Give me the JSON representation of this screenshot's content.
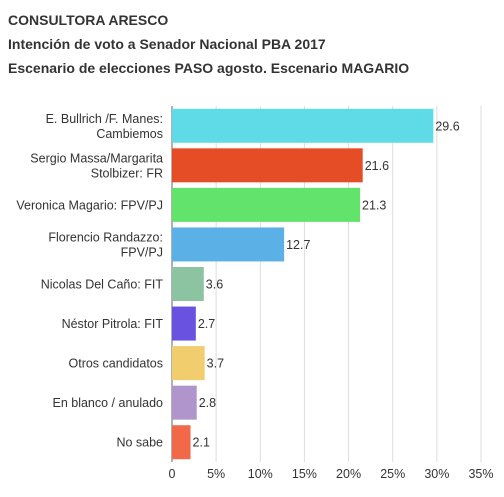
{
  "header": {
    "line1": "CONSULTORA ARESCO",
    "line2": "Intención de voto a Senador Nacional PBA 2017",
    "line3": "Escenario de elecciones PASO agosto. Escenario MAGARIO"
  },
  "chart_data": {
    "type": "bar",
    "orientation": "horizontal",
    "title": "Intención de voto a Senador Nacional PBA 2017",
    "subtitle": "Escenario de elecciones PASO agosto. Escenario MAGARIO",
    "xlabel": "",
    "ylabel": "",
    "xlim": [
      0,
      35
    ],
    "grid": true,
    "legend": "none",
    "categories": [
      [
        "E. Bullrich /F. Manes:",
        "Cambiemos"
      ],
      [
        "Sergio Massa/Margarita",
        "Stolbizer: FR"
      ],
      [
        "Veronica Magario: FPV/PJ"
      ],
      [
        "Florencio Randazzo:",
        "FPV/PJ"
      ],
      [
        "Nicolas Del Caño: FIT"
      ],
      [
        "Néstor Pitrola: FIT"
      ],
      [
        "Otros candidatos"
      ],
      [
        "En blanco / anulado"
      ],
      [
        "No sabe"
      ]
    ],
    "values": [
      29.6,
      21.6,
      21.3,
      12.7,
      3.6,
      2.7,
      3.7,
      2.8,
      2.1
    ],
    "value_labels": [
      "29.6",
      "21.6",
      "21.3",
      "12.7",
      "3.6",
      "2.7",
      "3.7",
      "2.8",
      "2.1"
    ],
    "colors": [
      "#5fdbe8",
      "#e54d26",
      "#62e36c",
      "#5bb1e6",
      "#8cc4a2",
      "#6a52e0",
      "#f2cd6d",
      "#b095cc",
      "#f2694a"
    ],
    "ticks": [
      0,
      5,
      10,
      15,
      20,
      25,
      30,
      35
    ],
    "tick_labels": [
      "0",
      "5%",
      "10%",
      "15%",
      "20%",
      "25%",
      "30%",
      "35%"
    ]
  }
}
